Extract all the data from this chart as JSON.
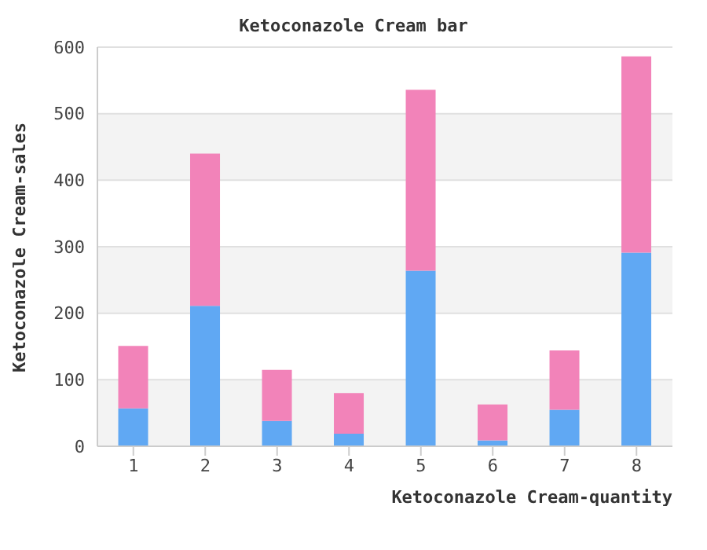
{
  "chart_data": {
    "type": "bar",
    "title": "Ketoconazole Cream bar",
    "xlabel": "Ketoconazole Cream-quantity",
    "ylabel": "Ketoconazole Cream-sales",
    "categories": [
      "1",
      "2",
      "3",
      "4",
      "5",
      "6",
      "7",
      "8"
    ],
    "stacked": true,
    "series": [
      {
        "color": "#60a8f3",
        "values": [
          57,
          211,
          38,
          19,
          264,
          9,
          55,
          291
        ]
      },
      {
        "color": "#f283b9",
        "values": [
          94,
          229,
          77,
          61,
          272,
          54,
          89,
          295
        ]
      }
    ],
    "ylim": [
      0,
      600
    ],
    "yticks": [
      0,
      100,
      200,
      300,
      400,
      500,
      600
    ],
    "grid": "y",
    "legend": false
  }
}
